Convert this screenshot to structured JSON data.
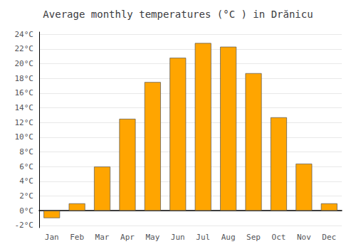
{
  "chart_data": {
    "type": "bar",
    "title": "Average monthly temperatures (°C ) in Drănicu",
    "categories": [
      "Jan",
      "Feb",
      "Mar",
      "Apr",
      "May",
      "Jun",
      "Jul",
      "Aug",
      "Sep",
      "Oct",
      "Nov",
      "Dec"
    ],
    "values": [
      -1.0,
      1.0,
      6.0,
      12.5,
      17.5,
      20.8,
      22.8,
      22.3,
      18.7,
      12.7,
      6.4,
      1.0
    ],
    "color": "#FFA500",
    "ylim": [
      -2.3,
      24.3
    ],
    "yticks": [
      {
        "value": -2,
        "label": "-2°C"
      },
      {
        "value": 0,
        "label": "0°C"
      },
      {
        "value": 2,
        "label": "2°C"
      },
      {
        "value": 4,
        "label": "4°C"
      },
      {
        "value": 6,
        "label": "6°C"
      },
      {
        "value": 8,
        "label": "8°C"
      },
      {
        "value": 10,
        "label": "10°C"
      },
      {
        "value": 12,
        "label": "12°C"
      },
      {
        "value": 14,
        "label": "14°C"
      },
      {
        "value": 16,
        "label": "16°C"
      },
      {
        "value": 18,
        "label": "18°C"
      },
      {
        "value": 20,
        "label": "20°C"
      },
      {
        "value": 22,
        "label": "22°C"
      },
      {
        "value": 24,
        "label": "24°C"
      }
    ],
    "grid": true
  }
}
